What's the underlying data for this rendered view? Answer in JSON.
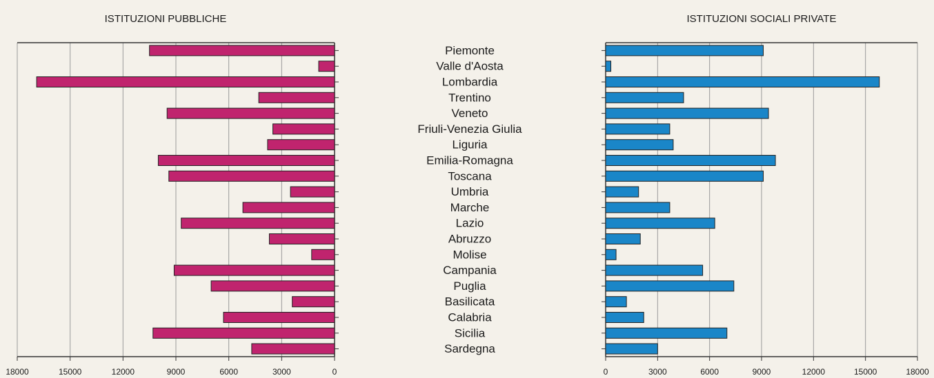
{
  "chart_data": {
    "type": "butterfly",
    "categories": [
      "Piemonte",
      "Valle d'Aosta",
      "Lombardia",
      "Trentino",
      "Veneto",
      "Friuli-Venezia Giulia",
      "Liguria",
      "Emilia-Romagna",
      "Toscana",
      "Umbria",
      "Marche",
      "Lazio",
      "Abruzzo",
      "Molise",
      "Campania",
      "Puglia",
      "Basilicata",
      "Calabria",
      "Sicilia",
      "Sardegna"
    ],
    "series": [
      {
        "name": "ISTITUZIONI PUBBLICHE",
        "color": "#c0246e",
        "reversed": true,
        "values": [
          10500,
          900,
          16900,
          4300,
          9500,
          3500,
          3800,
          10000,
          9400,
          2500,
          5200,
          8700,
          3700,
          1300,
          9100,
          7000,
          2400,
          6300,
          10300,
          4700
        ],
        "xlim": [
          0,
          18000
        ],
        "xticks": [
          0,
          3000,
          6000,
          9000,
          12000,
          15000,
          18000
        ]
      },
      {
        "name": "ISTITUZIONI SOCIALI PRIVATE",
        "color": "#1a86c8",
        "reversed": false,
        "values": [
          9100,
          300,
          15800,
          4500,
          9400,
          3700,
          3900,
          9800,
          9100,
          1900,
          3700,
          6300,
          2000,
          600,
          5600,
          7400,
          1200,
          2200,
          7000,
          3000
        ],
        "xlim": [
          0,
          18000
        ],
        "xticks": [
          0,
          3000,
          6000,
          9000,
          12000,
          15000,
          18000
        ]
      }
    ],
    "grid": true
  }
}
